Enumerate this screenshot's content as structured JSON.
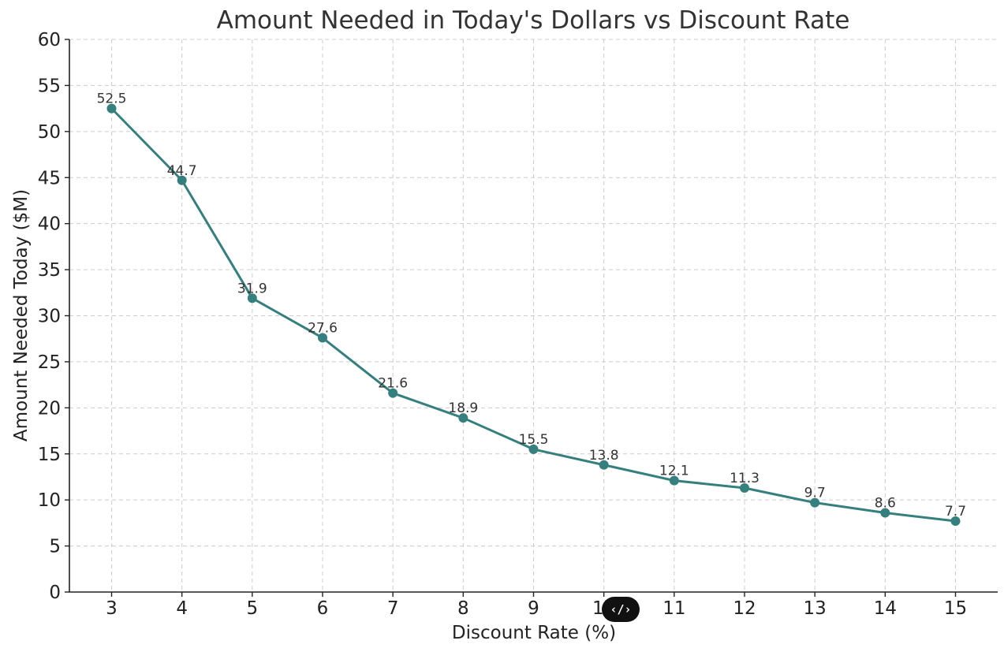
{
  "chart_data": {
    "type": "line",
    "title": "Amount Needed in Today's Dollars vs Discount Rate",
    "xlabel": "Discount Rate (%)",
    "ylabel": "Amount Needed Today ($M)",
    "x": [
      3,
      4,
      5,
      6,
      7,
      8,
      9,
      10,
      11,
      12,
      13,
      14,
      15
    ],
    "series": [
      {
        "values": [
          52.5,
          44.7,
          31.9,
          27.6,
          21.6,
          18.9,
          15.5,
          13.8,
          12.1,
          11.3,
          9.7,
          8.6,
          7.7
        ],
        "labels": [
          "52.5",
          "44.7",
          "31.9",
          "27.6",
          "21.6",
          "18.9",
          "15.5",
          "13.8",
          "12.1",
          "11.3",
          "9.7",
          "8.6",
          "7.7"
        ],
        "color": "#367f7f"
      }
    ],
    "xlim": [
      2.4,
      15.6
    ],
    "ylim": [
      0,
      60
    ],
    "xticks": [
      3,
      4,
      5,
      6,
      7,
      8,
      9,
      10,
      11,
      12,
      13,
      14,
      15
    ],
    "xtick_labels": [
      "3",
      "4",
      "5",
      "6",
      "7",
      "8",
      "9",
      "10",
      "11",
      "12",
      "13",
      "14",
      "15"
    ],
    "yticks": [
      0,
      5,
      10,
      15,
      20,
      25,
      30,
      35,
      40,
      45,
      50,
      55,
      60
    ],
    "ytick_labels": [
      "0",
      "5",
      "10",
      "15",
      "20",
      "25",
      "30",
      "35",
      "40",
      "45",
      "50",
      "55",
      "60"
    ],
    "grid": true,
    "marker": "circle"
  },
  "overlay": {
    "embed_icon": "code-embed-icon",
    "embed_label": "‹/›"
  }
}
